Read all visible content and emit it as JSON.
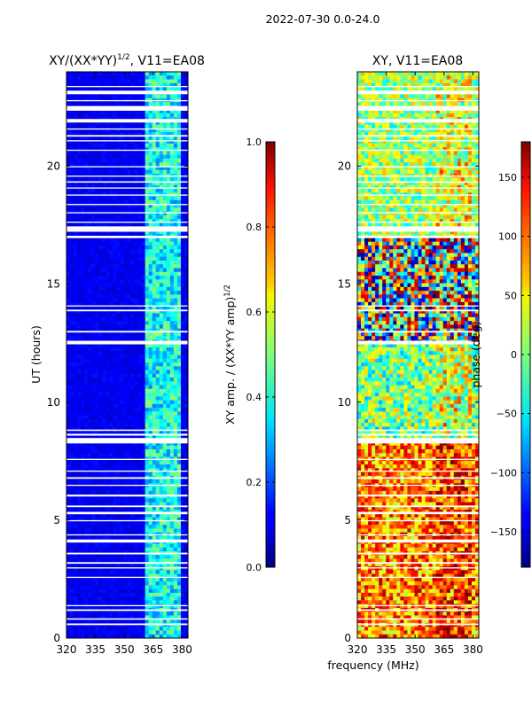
{
  "figure_title": "2022-07-30 0.0-24.0",
  "xlabel_shared": "frequency (MHz)",
  "chart_data": [
    {
      "type": "heatmap",
      "title_base": "XY/(XX*YY)",
      "title_sup": "1/2",
      "title_tail": ", V11=EA08",
      "xlabel": "",
      "ylabel": "UT (hours)",
      "xlim": [
        320,
        383
      ],
      "ylim": [
        0,
        24
      ],
      "xticks": [
        320,
        335,
        350,
        365,
        380
      ],
      "yticks": [
        0,
        5,
        10,
        15,
        20
      ],
      "colormap": "jet",
      "colorbar": {
        "label_base": "XY amp. / (XX*YY amp)",
        "label_sup": "1/2",
        "range": [
          0.0,
          1.0
        ],
        "ticks": [
          "0.0",
          "0.2",
          "0.4",
          "0.6",
          "0.8",
          "1.0"
        ],
        "tick_values": [
          0.0,
          0.2,
          0.4,
          0.6,
          0.8,
          1.0
        ]
      },
      "bright_band_mhz": [
        360,
        380
      ],
      "background_level": 0.08,
      "band_level": 0.45
    },
    {
      "type": "heatmap",
      "title": "XY, V11=EA08",
      "xlabel": "frequency (MHz)",
      "ylabel": "",
      "xlim": [
        320,
        383
      ],
      "ylim": [
        0,
        24
      ],
      "xticks": [
        320,
        335,
        350,
        365,
        380
      ],
      "yticks": [
        0,
        5,
        10,
        15,
        20
      ],
      "colormap": "jet",
      "colorbar": {
        "label": "phase (deg)",
        "range": [
          -180,
          180
        ],
        "ticks": [
          "−150",
          "−100",
          "−50",
          "0",
          "50",
          "100",
          "150"
        ],
        "tick_values": [
          -150,
          -100,
          -50,
          0,
          50,
          100,
          150
        ]
      }
    }
  ],
  "flagged_ut_gaps_hours": [
    [
      0.55,
      0.62
    ],
    [
      0.78,
      0.84
    ],
    [
      1.15,
      1.22
    ],
    [
      1.35,
      1.4
    ],
    [
      2.55,
      2.6
    ],
    [
      2.95,
      3.0
    ],
    [
      3.15,
      3.22
    ],
    [
      3.55,
      3.62
    ],
    [
      4.05,
      4.18
    ],
    [
      4.35,
      4.4
    ],
    [
      4.95,
      5.0
    ],
    [
      5.25,
      5.35
    ],
    [
      5.55,
      5.62
    ],
    [
      6.0,
      6.08
    ],
    [
      6.45,
      6.5
    ],
    [
      6.75,
      6.82
    ],
    [
      7.05,
      7.1
    ],
    [
      7.55,
      7.6
    ],
    [
      8.25,
      8.48
    ],
    [
      8.58,
      8.66
    ],
    [
      8.78,
      8.84
    ],
    [
      12.45,
      12.6
    ],
    [
      12.95,
      13.02
    ],
    [
      13.85,
      13.92
    ],
    [
      14.05,
      14.1
    ],
    [
      16.95,
      17.05
    ],
    [
      17.22,
      17.45
    ],
    [
      17.6,
      17.65
    ],
    [
      18.0,
      18.05
    ],
    [
      18.35,
      18.4
    ],
    [
      18.75,
      18.8
    ],
    [
      19.05,
      19.1
    ],
    [
      19.3,
      19.36
    ],
    [
      19.55,
      19.6
    ],
    [
      19.95,
      20.0
    ],
    [
      20.65,
      20.7
    ],
    [
      21.05,
      21.1
    ],
    [
      21.25,
      21.32
    ],
    [
      21.55,
      21.6
    ],
    [
      21.85,
      22.0
    ],
    [
      22.35,
      22.55
    ],
    [
      22.75,
      22.8
    ],
    [
      23.05,
      23.2
    ],
    [
      23.35,
      23.4
    ]
  ]
}
